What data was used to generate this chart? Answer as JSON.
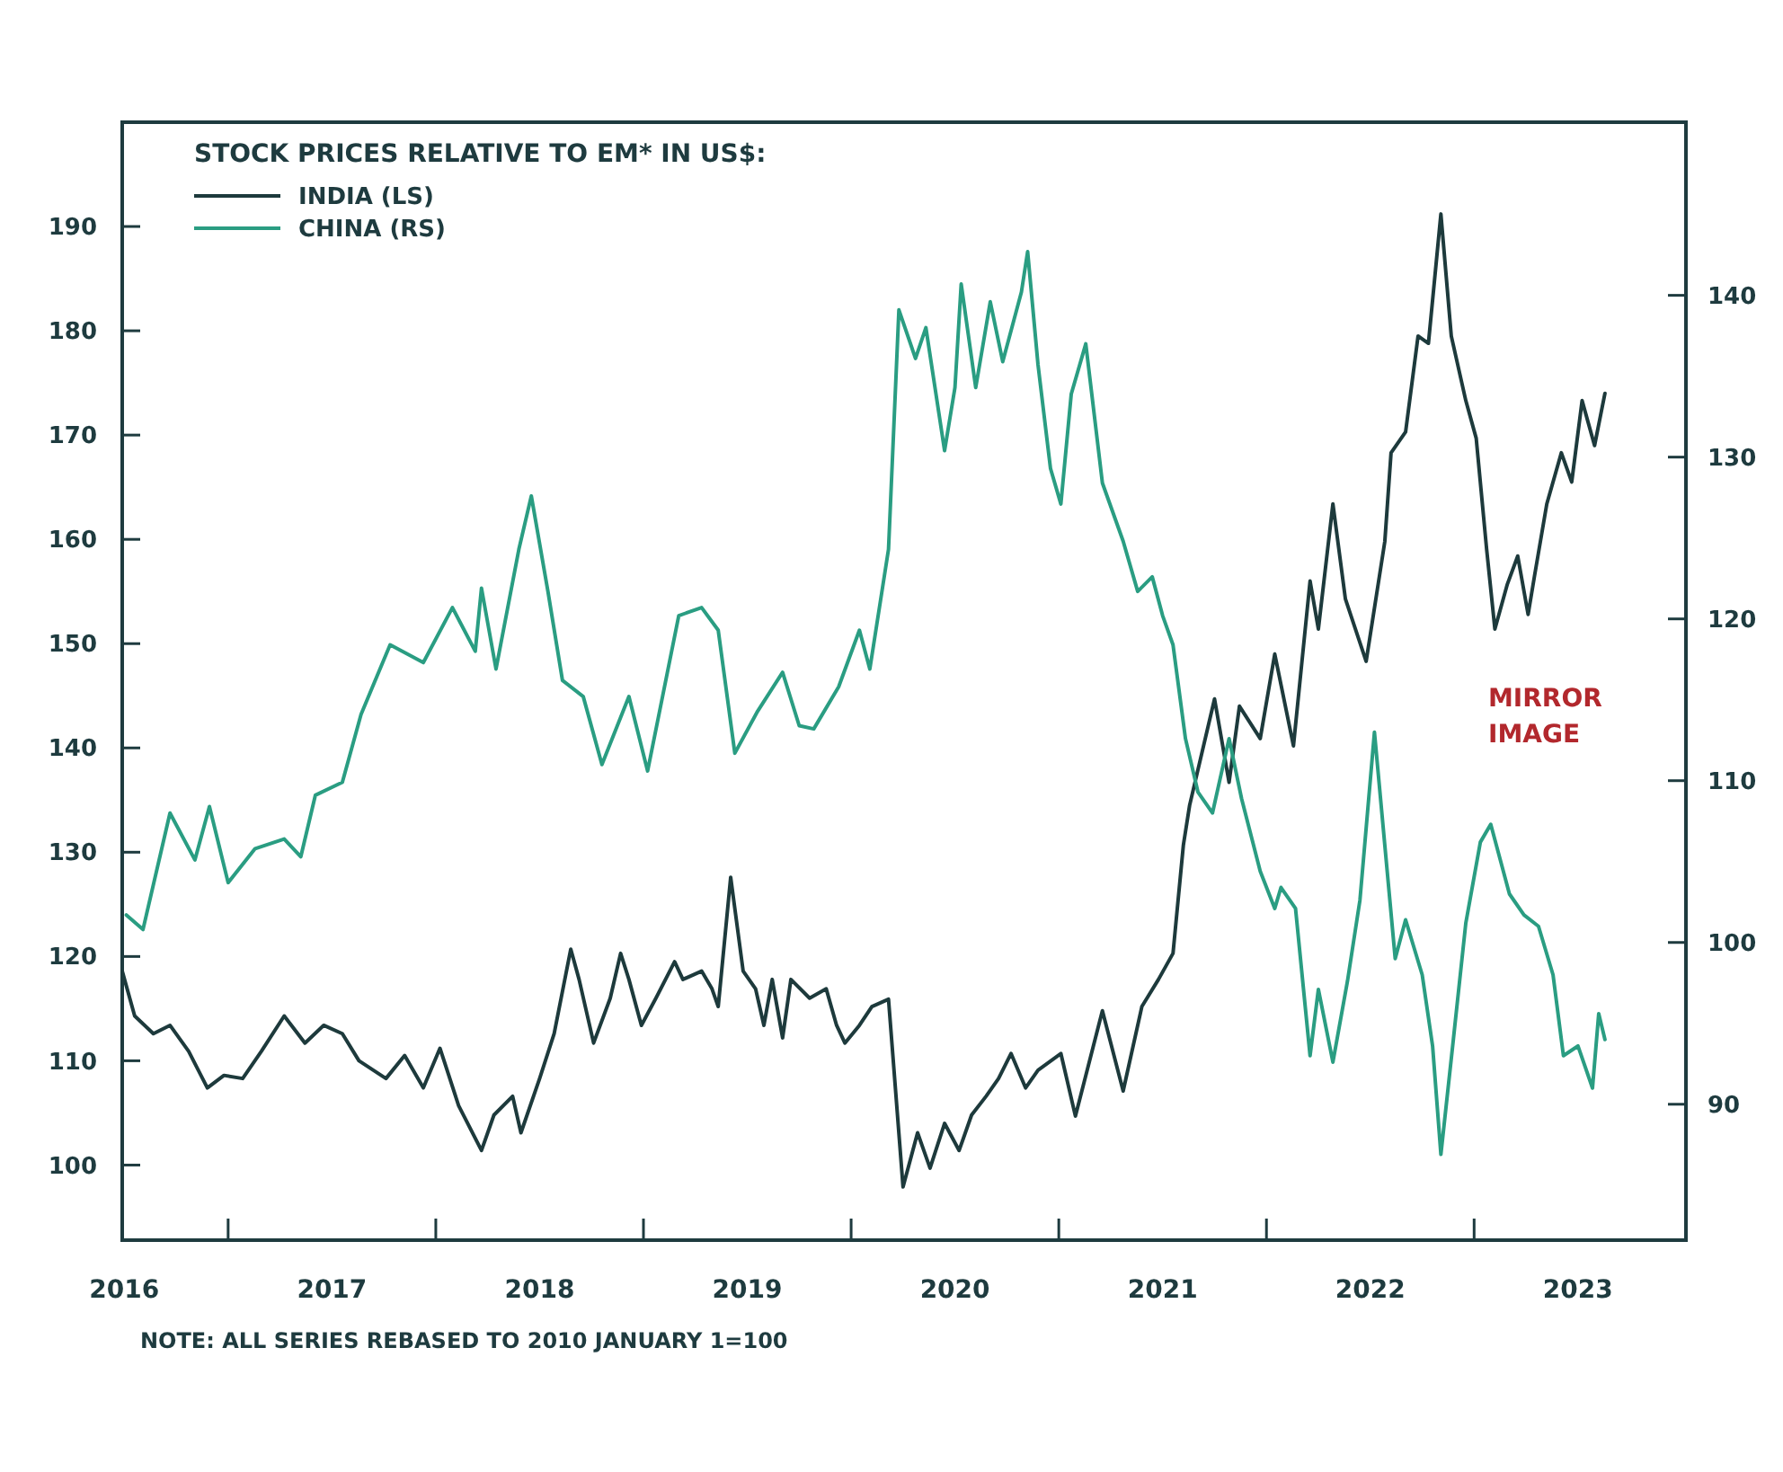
{
  "chart_data": {
    "type": "line",
    "title": "STOCK PRICES RELATIVE TO EM* IN US$:",
    "xlim": [
      2016.49,
      2024.02
    ],
    "xticks": [
      {
        "value": 2016.5,
        "label": "2016"
      },
      {
        "value": 2017,
        "label": null
      },
      {
        "value": 2017.5,
        "label": "2017"
      },
      {
        "value": 2018,
        "label": null
      },
      {
        "value": 2018.5,
        "label": "2018"
      },
      {
        "value": 2019,
        "label": null
      },
      {
        "value": 2019.5,
        "label": "2019"
      },
      {
        "value": 2020,
        "label": null
      },
      {
        "value": 2020.5,
        "label": "2020"
      },
      {
        "value": 2021,
        "label": null
      },
      {
        "value": 2021.5,
        "label": "2021"
      },
      {
        "value": 2022,
        "label": null
      },
      {
        "value": 2022.5,
        "label": "2022"
      },
      {
        "value": 2023,
        "label": null
      },
      {
        "value": 2023.5,
        "label": "2023"
      }
    ],
    "ylim": [
      92.8,
      200
    ],
    "yticks": [
      100,
      110,
      120,
      130,
      140,
      150,
      160,
      170,
      180,
      190
    ],
    "y2lim": [
      81.6,
      150.7
    ],
    "y2ticks": [
      90,
      100,
      110,
      120,
      130,
      140
    ],
    "legend": "top left",
    "grid": false,
    "annotations": [
      "MIRROR IMAGE",
      "NOTE: ALL SERIES REBASED TO 2010 JANUARY 1=100"
    ],
    "series": [
      {
        "name": "INDIA (LS)",
        "color": "#1d3a3c",
        "axis": "y",
        "x": [
          2016.49,
          2016.55,
          2016.64,
          2016.72,
          2016.81,
          2016.9,
          2016.98,
          2017.07,
          2017.16,
          2017.27,
          2017.37,
          2017.46,
          2017.55,
          2017.63,
          2017.76,
          2017.85,
          2017.94,
          2018.02,
          2018.11,
          2018.22,
          2018.28,
          2018.37,
          2018.41,
          2018.5,
          2018.57,
          2018.65,
          2018.69,
          2018.76,
          2018.84,
          2018.89,
          2018.93,
          2018.99,
          2019.06,
          2019.15,
          2019.19,
          2019.28,
          2019.33,
          2019.36,
          2019.42,
          2019.48,
          2019.54,
          2019.58,
          2019.62,
          2019.67,
          2019.71,
          2019.8,
          2019.88,
          2019.93,
          2019.97,
          2020.04,
          2020.1,
          2020.18,
          2020.25,
          2020.32,
          2020.38,
          2020.45,
          2020.52,
          2020.58,
          2020.65,
          2020.71,
          2020.77,
          2020.84,
          2020.9,
          2021.01,
          2021.08,
          2021.21,
          2021.31,
          2021.4,
          2021.48,
          2021.55,
          2021.6,
          2021.63,
          2021.75,
          2021.82,
          2021.87,
          2021.97,
          2022.04,
          2022.13,
          2022.21,
          2022.25,
          2022.32,
          2022.38,
          2022.48,
          2022.57,
          2022.6,
          2022.67,
          2022.73,
          2022.78,
          2022.84,
          2022.89,
          2022.96,
          2023.01,
          2023.06,
          2023.1,
          2023.16,
          2023.21,
          2023.26,
          2023.29,
          2023.35,
          2023.42,
          2023.47,
          2023.52,
          2023.58,
          2023.63
        ],
        "values": [
          118.6,
          114.3,
          112.6,
          113.4,
          110.9,
          107.4,
          108.6,
          108.3,
          110.9,
          114.3,
          111.7,
          113.4,
          112.6,
          110,
          108.3,
          110.5,
          107.4,
          111.2,
          105.7,
          101.4,
          104.8,
          106.6,
          103.1,
          108.3,
          112.6,
          120.7,
          117.8,
          111.7,
          116,
          120.3,
          117.8,
          113.4,
          116,
          119.5,
          117.8,
          118.6,
          116.9,
          115.2,
          127.6,
          118.6,
          116.9,
          113.4,
          117.8,
          112.2,
          117.8,
          116,
          116.9,
          113.4,
          111.7,
          113.4,
          115.2,
          115.9,
          97.9,
          103.1,
          99.7,
          104,
          101.4,
          104.8,
          106.6,
          108.3,
          110.7,
          107.4,
          109.1,
          110.7,
          104.7,
          114.8,
          107.1,
          115.2,
          117.8,
          120.3,
          130.7,
          134.5,
          144.7,
          136.7,
          144,
          140.9,
          149,
          140.2,
          156,
          151.4,
          163.4,
          154.3,
          148.3,
          159.8,
          168.3,
          170.3,
          179.5,
          178.8,
          191.2,
          179.5,
          173.3,
          169.7,
          159.1,
          151.4,
          155.7,
          158.4,
          152.8,
          156.4,
          163.4,
          168.3,
          165.5,
          173.3,
          169,
          174
        ]
      },
      {
        "name": "CHINA (RS)",
        "color": "#2a9d82",
        "axis": "y2",
        "x": [
          2016.51,
          2016.59,
          2016.72,
          2016.84,
          2016.91,
          2017,
          2017.13,
          2017.27,
          2017.35,
          2017.42,
          2017.55,
          2017.64,
          2017.78,
          2017.94,
          2018.08,
          2018.19,
          2018.22,
          2018.29,
          2018.4,
          2018.46,
          2018.54,
          2018.61,
          2018.71,
          2018.8,
          2018.93,
          2019.02,
          2019.17,
          2019.28,
          2019.36,
          2019.44,
          2019.55,
          2019.67,
          2019.75,
          2019.82,
          2019.94,
          2020.04,
          2020.09,
          2020.18,
          2020.23,
          2020.31,
          2020.36,
          2020.45,
          2020.5,
          2020.53,
          2020.6,
          2020.67,
          2020.73,
          2020.82,
          2020.85,
          2020.9,
          2020.96,
          2021.01,
          2021.06,
          2021.13,
          2021.21,
          2021.31,
          2021.38,
          2021.45,
          2021.5,
          2021.55,
          2021.61,
          2021.67,
          2021.74,
          2021.82,
          2021.88,
          2021.97,
          2022.04,
          2022.07,
          2022.14,
          2022.21,
          2022.25,
          2022.32,
          2022.39,
          2022.45,
          2022.52,
          2022.62,
          2022.67,
          2022.75,
          2022.8,
          2022.84,
          2022.9,
          2022.96,
          2023.03,
          2023.08,
          2023.17,
          2023.24,
          2023.31,
          2023.38,
          2023.43,
          2023.5,
          2023.57,
          2023.6,
          2023.63
        ],
        "values": [
          101.7,
          100.8,
          108,
          105.1,
          108.4,
          103.7,
          105.8,
          106.4,
          105.3,
          109.1,
          109.9,
          114.1,
          118.4,
          117.3,
          120.7,
          118,
          121.9,
          116.9,
          124.3,
          127.6,
          121.7,
          116.2,
          115.2,
          111,
          115.2,
          110.6,
          120.2,
          120.7,
          119.3,
          111.7,
          114.3,
          116.7,
          113.4,
          113.2,
          115.8,
          119.3,
          116.9,
          124.3,
          139.1,
          136.1,
          138,
          130.4,
          134.3,
          140.7,
          134.3,
          139.6,
          135.9,
          140.2,
          142.7,
          135.7,
          129.3,
          127.1,
          133.9,
          137,
          128.4,
          124.8,
          121.7,
          122.6,
          120.2,
          118.4,
          112.6,
          109.3,
          108,
          112.6,
          108.9,
          104.4,
          102.1,
          103.4,
          102.1,
          93,
          97.1,
          92.6,
          97.6,
          102.6,
          113,
          99,
          101.4,
          98,
          93.6,
          86.9,
          94,
          101.2,
          106.2,
          107.3,
          103,
          101.7,
          101,
          98,
          93,
          93.6,
          91,
          95.6,
          94
        ]
      }
    ]
  }
}
